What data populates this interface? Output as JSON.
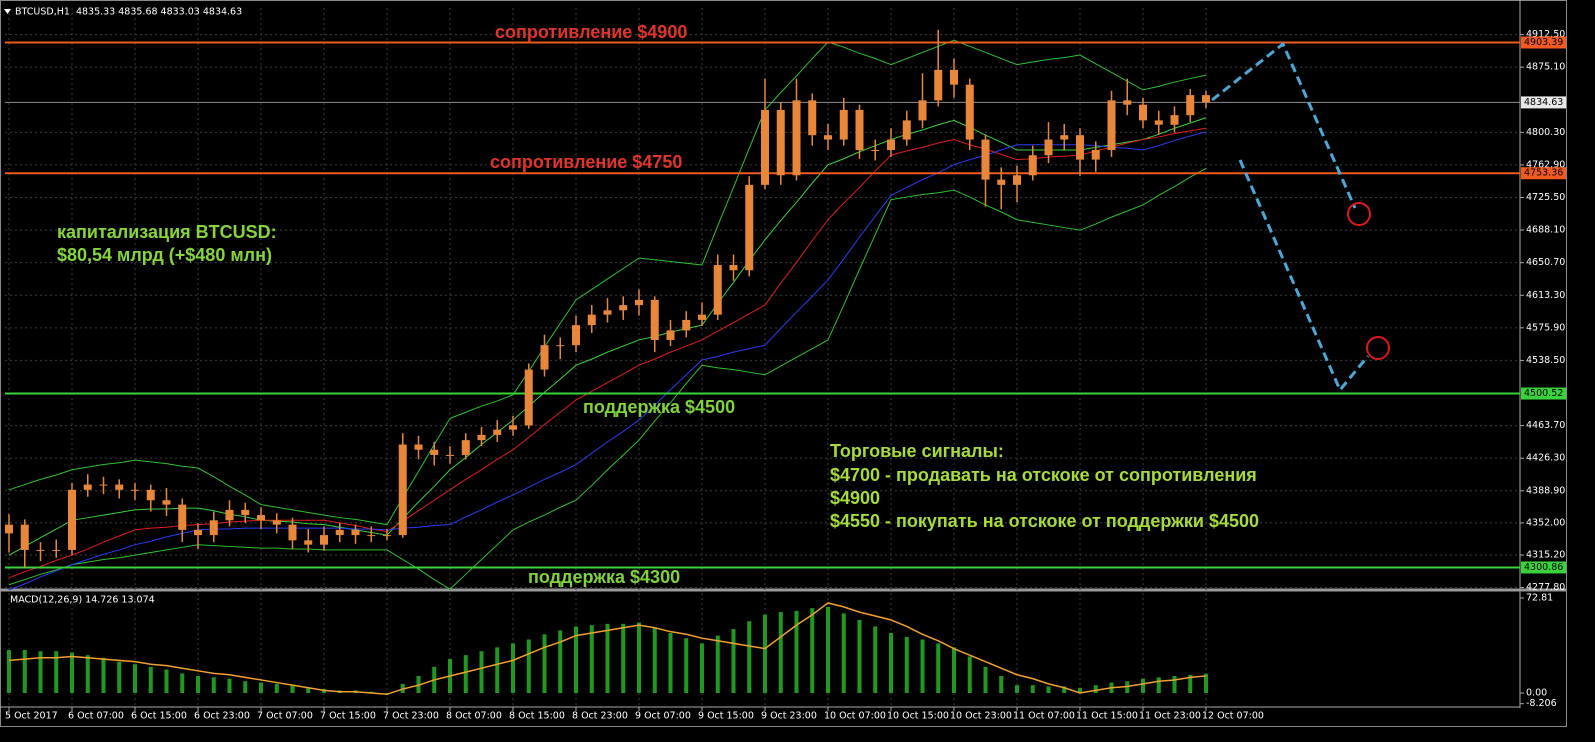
{
  "chart_data": [
    {
      "type": "candlestick",
      "title": "BTCUSD,H1  4835.33 4835.68 4833.03 4834.63",
      "categories": [
        "5 Oct 2017",
        null,
        null,
        null,
        "6 Oct 07:00",
        null,
        null,
        null,
        "6 Oct 15:00",
        null,
        null,
        null,
        "6 Oct 23:00",
        null,
        null,
        null,
        "7 Oct 07:00",
        null,
        null,
        null,
        "7 Oct 15:00",
        null,
        null,
        null,
        "7 Oct 23:00",
        null,
        null,
        null,
        "8 Oct 07:00",
        null,
        null,
        null,
        "8 Oct 15:00",
        null,
        null,
        null,
        "8 Oct 23:00",
        null,
        null,
        null,
        "9 Oct 07:00",
        null,
        null,
        null,
        "9 Oct 15:00",
        null,
        null,
        null,
        "9 Oct 23:00",
        null,
        null,
        null,
        "10 Oct 07:00",
        null,
        null,
        null,
        "10 Oct 15:00",
        null,
        null,
        null,
        "10 Oct 23:00",
        null,
        null,
        null,
        "11 Oct 07:00",
        null,
        null,
        null,
        "11 Oct 15:00",
        null,
        null,
        null,
        "11 Oct 23:00",
        null,
        null,
        null,
        "12 Oct 07:00"
      ],
      "open": [
        4340,
        4350,
        4321,
        4321,
        4321,
        4390,
        4396,
        4396,
        4390,
        4390,
        4378,
        4373,
        4344,
        4338,
        4355,
        4367,
        4361,
        4355,
        4350,
        4332,
        4327,
        4338,
        4344,
        4338,
        4338,
        4338,
        4442,
        4436,
        4430,
        4430,
        4447,
        4453,
        4459,
        4464,
        4528,
        4556,
        4556,
        4579,
        4591,
        4596,
        4602,
        4608,
        4562,
        4573,
        4585,
        4591,
        4648,
        4642,
        4740,
        4826,
        4751,
        4837,
        4797,
        4792,
        4826,
        4780,
        4780,
        4792,
        4814,
        4837,
        4872,
        4855,
        4792,
        4746,
        4740,
        4751,
        4774,
        4792,
        4797,
        4769,
        4780,
        4837,
        4832,
        4814,
        4809,
        4820,
        4843
      ],
      "high": [
        4362,
        4356,
        4330,
        4333,
        4398,
        4408,
        4405,
        4402,
        4398,
        4396,
        4392,
        4380,
        4352,
        4365,
        4378,
        4375,
        4370,
        4363,
        4358,
        4345,
        4348,
        4352,
        4350,
        4348,
        4345,
        4455,
        4452,
        4445,
        4440,
        4455,
        4462,
        4470,
        4475,
        4535,
        4568,
        4565,
        4590,
        4602,
        4610,
        4612,
        4620,
        4612,
        4585,
        4595,
        4605,
        4660,
        4660,
        4750,
        4862,
        4835,
        4862,
        4845,
        4810,
        4840,
        4832,
        4792,
        4805,
        4825,
        4868,
        4918,
        4885,
        4862,
        4798,
        4760,
        4762,
        4785,
        4812,
        4810,
        4805,
        4790,
        4848,
        4862,
        4840,
        4825,
        4830,
        4850,
        4848
      ],
      "low": [
        4318,
        4300,
        4308,
        4312,
        4315,
        4382,
        4385,
        4380,
        4378,
        4365,
        4360,
        4330,
        4322,
        4330,
        4348,
        4352,
        4345,
        4340,
        4322,
        4318,
        4320,
        4330,
        4328,
        4330,
        4332,
        4335,
        4425,
        4418,
        4420,
        4425,
        4440,
        4445,
        4452,
        4460,
        4520,
        4540,
        4548,
        4570,
        4582,
        4585,
        4590,
        4548,
        4555,
        4565,
        4578,
        4585,
        4630,
        4635,
        4735,
        4740,
        4745,
        4785,
        4780,
        4785,
        4770,
        4768,
        4772,
        4785,
        4805,
        4830,
        4840,
        4780,
        4715,
        4712,
        4720,
        4745,
        4765,
        4780,
        4750,
        4755,
        4772,
        4820,
        4805,
        4798,
        4800,
        4812,
        4828
      ],
      "close": [
        4350,
        4321,
        4321,
        4321,
        4390,
        4396,
        4396,
        4390,
        4390,
        4378,
        4373,
        4344,
        4338,
        4355,
        4367,
        4361,
        4355,
        4350,
        4332,
        4327,
        4338,
        4344,
        4338,
        4338,
        4338,
        4442,
        4436,
        4430,
        4430,
        4447,
        4453,
        4459,
        4464,
        4528,
        4556,
        4556,
        4579,
        4591,
        4596,
        4602,
        4608,
        4562,
        4573,
        4585,
        4591,
        4648,
        4642,
        4740,
        4826,
        4751,
        4837,
        4797,
        4792,
        4826,
        4780,
        4780,
        4792,
        4814,
        4837,
        4872,
        4855,
        4792,
        4746,
        4740,
        4751,
        4774,
        4792,
        4797,
        4769,
        4780,
        4837,
        4832,
        4814,
        4809,
        4820,
        4843,
        4834.63
      ],
      "color": "#e8873a",
      "series": [
        {
          "color": "#2ec22e",
          "values": [
            4390,
            4396,
            4402,
            4407,
            4413,
            4416,
            4419,
            4421,
            4424,
            4422,
            4420,
            4417,
            4415,
            4405,
            4394,
            4384,
            4373,
            4370,
            4367,
            4364,
            4361,
            4358,
            4356,
            4353,
            4350,
            4381,
            4411,
            4442,
            4472,
            4479,
            4486,
            4492,
            4499,
            4526,
            4554,
            4581,
            4608,
            4620,
            4632,
            4644,
            4656,
            4654,
            4652,
            4650,
            4648,
            4693,
            4737,
            4782,
            4826,
            4846,
            4865,
            4885,
            4904,
            4898,
            4891,
            4885,
            4878,
            4885,
            4892,
            4899,
            4906,
            4899,
            4892,
            4885,
            4878,
            4881,
            4884,
            4886,
            4889,
            4879,
            4869,
            4859,
            4849,
            4853,
            4858,
            4862,
            4866
          ]
        },
        {
          "color": "#2ec22e",
          "values": [
            4281,
            4287,
            4293,
            4298,
            4304,
            4307,
            4310,
            4312,
            4315,
            4318,
            4321,
            4324,
            4327,
            4326,
            4325,
            4324,
            4323,
            4323,
            4322,
            4322,
            4321,
            4321,
            4321,
            4321,
            4321,
            4310,
            4299,
            4287,
            4276,
            4293,
            4310,
            4327,
            4344,
            4353,
            4361,
            4370,
            4378,
            4395,
            4413,
            4430,
            4447,
            4469,
            4490,
            4512,
            4533,
            4530,
            4528,
            4525,
            4522,
            4532,
            4542,
            4552,
            4562,
            4602,
            4643,
            4683,
            4723,
            4726,
            4729,
            4731,
            4734,
            4726,
            4717,
            4709,
            4700,
            4697,
            4694,
            4691,
            4688,
            4695,
            4703,
            4710,
            4717,
            4728,
            4738,
            4749,
            4759
          ]
        },
        {
          "color": "#3ad23a",
          "values": [
            4315,
            4325,
            4335,
            4345,
            4355,
            4358,
            4361,
            4364,
            4367,
            4368,
            4368,
            4369,
            4369,
            4366,
            4362,
            4359,
            4355,
            4354,
            4353,
            4351,
            4350,
            4347,
            4344,
            4341,
            4338,
            4357,
            4376,
            4394,
            4413,
            4427,
            4442,
            4456,
            4470,
            4486,
            4502,
            4517,
            4533,
            4540,
            4548,
            4555,
            4562,
            4566,
            4571,
            4575,
            4579,
            4604,
            4628,
            4653,
            4677,
            4699,
            4720,
            4742,
            4763,
            4770,
            4778,
            4785,
            4792,
            4798,
            4803,
            4809,
            4814,
            4806,
            4797,
            4789,
            4780,
            4780,
            4780,
            4780,
            4780,
            4783,
            4786,
            4789,
            4792,
            4798,
            4805,
            4811,
            4817
          ]
        },
        {
          "color": "#e01c1c",
          "values": [
            4289,
            4296,
            4302,
            4309,
            4315,
            4322,
            4330,
            4337,
            4344,
            4346,
            4347,
            4349,
            4350,
            4351,
            4353,
            4354,
            4355,
            4355,
            4355,
            4355,
            4355,
            4352,
            4349,
            4345,
            4342,
            4354,
            4366,
            4378,
            4390,
            4402,
            4413,
            4425,
            4436,
            4450,
            4465,
            4479,
            4493,
            4503,
            4513,
            4523,
            4533,
            4540,
            4548,
            4555,
            4562,
            4572,
            4582,
            4592,
            4602,
            4627,
            4651,
            4676,
            4700,
            4719,
            4737,
            4756,
            4774,
            4779,
            4783,
            4788,
            4792,
            4786,
            4781,
            4775,
            4769,
            4770,
            4772,
            4773,
            4774,
            4779,
            4783,
            4788,
            4792,
            4795,
            4799,
            4802,
            4805
          ]
        },
        {
          "color": "#2a3cf0",
          "values": [
            4275,
            4282,
            4290,
            4297,
            4304,
            4310,
            4316,
            4321,
            4327,
            4331,
            4336,
            4340,
            4344,
            4345,
            4345,
            4346,
            4346,
            4346,
            4346,
            4346,
            4346,
            4346,
            4345,
            4345,
            4344,
            4346,
            4347,
            4349,
            4350,
            4359,
            4367,
            4376,
            4384,
            4393,
            4402,
            4410,
            4419,
            4432,
            4445,
            4457,
            4470,
            4487,
            4505,
            4522,
            4539,
            4543,
            4548,
            4552,
            4556,
            4575,
            4594,
            4612,
            4631,
            4655,
            4680,
            4704,
            4728,
            4737,
            4746,
            4754,
            4763,
            4769,
            4774,
            4780,
            4786,
            4786,
            4786,
            4786,
            4786,
            4785,
            4783,
            4782,
            4780,
            4785,
            4791,
            4796,
            4801
          ]
        }
      ],
      "ylim": [
        4275,
        4943
      ],
      "yticks": [
        {
          "value": 4912.5,
          "label": "4912.50"
        },
        {
          "value": 4875.1,
          "label": "4875.10"
        },
        {
          "value": 4800.3,
          "label": "4800.30"
        },
        {
          "value": 4762.9,
          "label": "4762.90"
        },
        {
          "value": 4725.5,
          "label": "4725.50"
        },
        {
          "value": 4688.1,
          "label": "4688.10"
        },
        {
          "value": 4650.7,
          "label": "4650.70"
        },
        {
          "value": 4613.3,
          "label": "4613.30"
        },
        {
          "value": 4575.9,
          "label": "4575.90"
        },
        {
          "value": 4538.5,
          "label": "4538.50"
        },
        {
          "value": 4463.7,
          "label": "4463.70"
        },
        {
          "value": 4426.3,
          "label": "4426.30"
        },
        {
          "value": 4388.9,
          "label": "4388.90"
        },
        {
          "value": 4352,
          "label": "4352.00"
        },
        {
          "value": 4315.2,
          "label": "4315.20"
        },
        {
          "value": 4277.8,
          "label": "4277.80"
        }
      ],
      "grid": true,
      "levels": [
        {
          "value": 4903.39,
          "color": "#f05a1e"
        },
        {
          "value": 4834.63,
          "color": "#8c8c8c"
        },
        {
          "value": 4753.36,
          "color": "#f05a1e"
        },
        {
          "value": 4500.52,
          "color": "#3ad23a"
        },
        {
          "value": 4300.86,
          "color": "#3ad23a"
        }
      ],
      "annotations": [
        "сопротивление $4900",
        "сопротивление $4750",
        "капитализация BTCUSD:",
        "$80,54 млрд (+$480 млн)",
        "поддержка $4500",
        "Торговые сигналы:",
        "$4700 - продавать на отскоке от сопротивления",
        "$4900",
        "$4550 - покупать на отскоке от поддержки $4500",
        "поддержка $4300"
      ]
    },
    {
      "type": "macd",
      "title": "MACD(12,26,9) 14.726 13.074",
      "series": [
        {
          "type": "bar",
          "color": "#1f9a1f",
          "values": [
            33,
            33,
            32,
            32,
            31,
            29,
            27,
            24,
            22,
            20,
            18,
            15,
            13,
            12,
            11,
            9,
            8,
            7,
            6,
            4,
            3,
            2,
            2,
            1,
            0,
            7,
            13,
            20,
            26,
            29,
            32,
            35,
            38,
            41,
            45,
            48,
            51,
            52,
            53,
            53,
            54,
            50,
            46,
            42,
            38,
            44,
            49,
            55,
            60,
            62,
            63,
            65,
            66,
            61,
            56,
            51,
            46,
            43,
            41,
            38,
            35,
            28,
            20,
            13,
            6,
            6,
            5,
            5,
            4,
            6,
            8,
            9,
            11,
            12,
            13,
            14,
            14.726
          ]
        },
        {
          "type": "line",
          "color": "#f0a030",
          "values": [
            25,
            26,
            27,
            27,
            28,
            27,
            26,
            25,
            24,
            22,
            21,
            19,
            17,
            15,
            14,
            12,
            10,
            8,
            6,
            4,
            2,
            1,
            1,
            0,
            -1,
            3,
            6,
            10,
            13,
            16,
            19,
            22,
            25,
            30,
            35,
            39,
            44,
            46,
            48,
            50,
            52,
            50,
            47,
            45,
            42,
            40,
            38,
            36,
            34,
            43,
            52,
            60,
            69,
            66,
            62,
            59,
            56,
            51,
            45,
            40,
            34,
            29,
            24,
            19,
            14,
            11,
            7,
            4,
            0,
            2,
            4,
            5,
            7,
            9,
            10,
            12,
            13.074
          ]
        }
      ],
      "ylim": [
        -9.2,
        77.4
      ],
      "yticks": [
        72.81,
        {
          "value": 0,
          "label": "0.00"
        },
        -8.206
      ]
    }
  ]
}
